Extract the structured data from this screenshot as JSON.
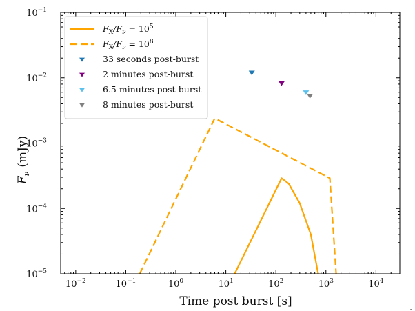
{
  "chart_data": {
    "type": "line",
    "xlabel": "Time post burst [s]",
    "ylabel": "Fν (mJy)",
    "x_scale": "log",
    "y_scale": "log",
    "xlim": [
      0.005,
      30000
    ],
    "ylim": [
      1e-05,
      0.1
    ],
    "x_ticks": [
      {
        "base": "10",
        "exp": "−2",
        "value": 0.01
      },
      {
        "base": "10",
        "exp": "−1",
        "value": 0.1
      },
      {
        "base": "10",
        "exp": "0",
        "value": 1
      },
      {
        "base": "10",
        "exp": "1",
        "value": 10
      },
      {
        "base": "10",
        "exp": "2",
        "value": 100
      },
      {
        "base": "10",
        "exp": "3",
        "value": 1000
      },
      {
        "base": "10",
        "exp": "4",
        "value": 10000
      }
    ],
    "y_ticks": [
      {
        "base": "10",
        "exp": "−5",
        "value": 1e-05
      },
      {
        "base": "10",
        "exp": "−4",
        "value": 0.0001
      },
      {
        "base": "10",
        "exp": "−3",
        "value": 0.001
      },
      {
        "base": "10",
        "exp": "−2",
        "value": 0.01
      },
      {
        "base": "10",
        "exp": "−1",
        "value": 0.1
      }
    ],
    "grid": false,
    "legend_position": "top-left",
    "series": [
      {
        "name": "FX/Fν = 10^5",
        "label_main": "F",
        "label_sub1": "X",
        "label_mid": "/F",
        "label_sub2": "ν",
        "label_eq": " = 10",
        "label_exp": "5",
        "style": "solid",
        "color": "#ffa500",
        "points": [
          [
            15,
            1e-05
          ],
          [
            130,
            0.00029
          ],
          [
            180,
            0.00024
          ],
          [
            300,
            0.00012
          ],
          [
            500,
            4e-05
          ],
          [
            700,
            1e-05
          ]
        ]
      },
      {
        "name": "FX/Fν = 10^8",
        "label_main": "F",
        "label_sub1": "X",
        "label_mid": "/F",
        "label_sub2": "ν",
        "label_eq": " = 10",
        "label_exp": "8",
        "style": "dashed",
        "color": "#ffa500",
        "points": [
          [
            0.19,
            1e-05
          ],
          [
            6,
            0.0024
          ],
          [
            1200,
            0.00029
          ],
          [
            1600,
            1e-05
          ]
        ]
      }
    ],
    "markers": [
      {
        "name": "33 seconds post-burst",
        "x": 33,
        "y": 0.012,
        "color": "#1f77b4"
      },
      {
        "name": "2 minutes post-burst",
        "x": 130,
        "y": 0.0083,
        "color": "#800080"
      },
      {
        "name": "6.5 minutes post-burst",
        "x": 400,
        "y": 0.006,
        "color": "#5bc0eb"
      },
      {
        "name": "8 minutes post-burst",
        "x": 480,
        "y": 0.0053,
        "color": "#7f7f7f"
      }
    ],
    "footnote_mark": "."
  }
}
